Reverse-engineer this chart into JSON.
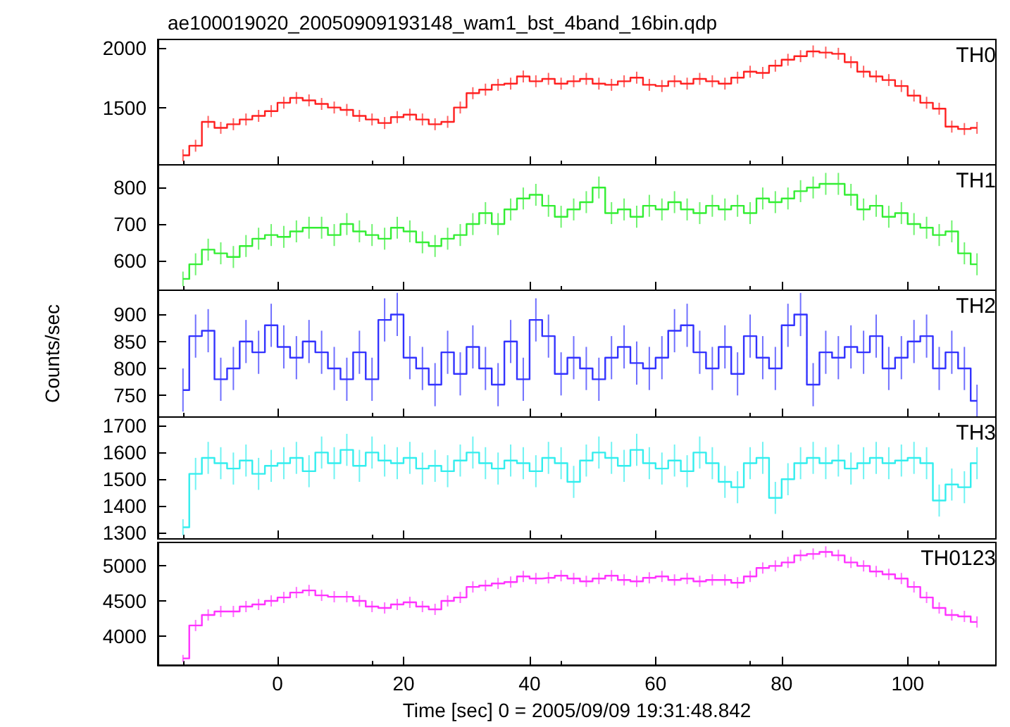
{
  "chart_data": [
    {
      "type": "step",
      "title": "ae100019020_20050909193148_wam1_bst_4band_16bin.qdp",
      "annotations": [
        "TH0"
      ],
      "color": "#ff2020",
      "tick_labels": "y",
      "marker": "none",
      "x": [
        -15,
        -13,
        -11,
        -9,
        -7,
        -5,
        -3,
        -1,
        1,
        3,
        5,
        7,
        9,
        11,
        13,
        15,
        17,
        19,
        21,
        23,
        25,
        27,
        29,
        31,
        33,
        35,
        37,
        39,
        41,
        43,
        45,
        47,
        49,
        51,
        53,
        55,
        57,
        59,
        61,
        63,
        65,
        67,
        69,
        71,
        73,
        75,
        77,
        79,
        81,
        83,
        85,
        87,
        89,
        91,
        93,
        95,
        97,
        99,
        101,
        103,
        105,
        107,
        109,
        111
      ],
      "values": [
        1100,
        1180,
        1380,
        1330,
        1360,
        1400,
        1430,
        1470,
        1540,
        1580,
        1560,
        1530,
        1500,
        1480,
        1430,
        1400,
        1370,
        1420,
        1440,
        1400,
        1360,
        1380,
        1500,
        1620,
        1650,
        1690,
        1700,
        1760,
        1720,
        1740,
        1700,
        1720,
        1740,
        1700,
        1690,
        1720,
        1750,
        1690,
        1680,
        1720,
        1700,
        1740,
        1720,
        1700,
        1750,
        1800,
        1790,
        1850,
        1900,
        1930,
        1970,
        1960,
        1950,
        1880,
        1800,
        1760,
        1730,
        1680,
        1600,
        1540,
        1490,
        1340,
        1320,
        1330
      ],
      "errors": [
        50,
        50,
        50,
        50,
        50,
        50,
        50,
        50,
        50,
        50,
        50,
        50,
        50,
        50,
        50,
        50,
        50,
        50,
        50,
        50,
        50,
        50,
        50,
        50,
        50,
        50,
        50,
        50,
        50,
        50,
        50,
        50,
        50,
        50,
        50,
        50,
        50,
        50,
        50,
        50,
        50,
        50,
        50,
        50,
        50,
        50,
        50,
        50,
        50,
        50,
        50,
        50,
        50,
        50,
        50,
        50,
        50,
        50,
        50,
        50,
        50,
        50,
        50,
        50
      ],
      "xlim": [
        -19,
        114
      ],
      "xticks": [
        0,
        20,
        40,
        60,
        80,
        100
      ],
      "ylim": [
        1020,
        2070
      ],
      "yticks": [
        1500,
        2000
      ]
    },
    {
      "type": "step",
      "annotations": [
        "TH1"
      ],
      "color": "#33ee33",
      "tick_labels": "y",
      "marker": "none",
      "x": [
        -15,
        -13,
        -11,
        -9,
        -7,
        -5,
        -3,
        -1,
        1,
        3,
        5,
        7,
        9,
        11,
        13,
        15,
        17,
        19,
        21,
        23,
        25,
        27,
        29,
        31,
        33,
        35,
        37,
        39,
        41,
        43,
        45,
        47,
        49,
        51,
        53,
        55,
        57,
        59,
        61,
        63,
        65,
        67,
        69,
        71,
        73,
        75,
        77,
        79,
        81,
        83,
        85,
        87,
        89,
        91,
        93,
        95,
        97,
        99,
        101,
        103,
        105,
        107,
        109,
        111
      ],
      "values": [
        550,
        590,
        630,
        620,
        610,
        640,
        660,
        670,
        665,
        680,
        690,
        690,
        670,
        700,
        680,
        670,
        660,
        690,
        680,
        650,
        640,
        660,
        670,
        700,
        730,
        700,
        740,
        770,
        780,
        750,
        720,
        740,
        760,
        800,
        730,
        740,
        720,
        750,
        740,
        760,
        740,
        730,
        750,
        740,
        750,
        730,
        770,
        760,
        770,
        790,
        800,
        810,
        810,
        780,
        740,
        750,
        720,
        730,
        700,
        690,
        670,
        680,
        620,
        590
      ],
      "errors": [
        20,
        30,
        30,
        30,
        30,
        30,
        30,
        30,
        30,
        30,
        30,
        30,
        30,
        30,
        30,
        30,
        30,
        30,
        30,
        30,
        30,
        30,
        30,
        30,
        30,
        30,
        30,
        30,
        30,
        30,
        30,
        30,
        30,
        30,
        30,
        30,
        30,
        30,
        30,
        30,
        30,
        30,
        30,
        30,
        30,
        30,
        30,
        30,
        30,
        30,
        30,
        30,
        30,
        30,
        30,
        30,
        30,
        30,
        30,
        30,
        30,
        30,
        30,
        30
      ],
      "xlim": [
        -19,
        114
      ],
      "xticks": [
        0,
        20,
        40,
        60,
        80,
        100
      ],
      "ylim": [
        519,
        862
      ],
      "yticks": [
        600,
        700,
        800
      ]
    },
    {
      "type": "step",
      "ylabel": "Counts/sec",
      "annotations": [
        "TH2"
      ],
      "color": "#3333ff",
      "tick_labels": "y",
      "marker": "none",
      "x": [
        -15,
        -13,
        -11,
        -9,
        -7,
        -5,
        -3,
        -1,
        1,
        3,
        5,
        7,
        9,
        11,
        13,
        15,
        17,
        19,
        21,
        23,
        25,
        27,
        29,
        31,
        33,
        35,
        37,
        39,
        41,
        43,
        45,
        47,
        49,
        51,
        53,
        55,
        57,
        59,
        61,
        63,
        65,
        67,
        69,
        71,
        73,
        75,
        77,
        79,
        81,
        83,
        85,
        87,
        89,
        91,
        93,
        95,
        97,
        99,
        101,
        103,
        105,
        107,
        109,
        111
      ],
      "values": [
        760,
        860,
        870,
        780,
        800,
        850,
        830,
        880,
        840,
        820,
        850,
        830,
        800,
        780,
        830,
        780,
        890,
        900,
        820,
        800,
        770,
        830,
        790,
        840,
        800,
        770,
        850,
        780,
        890,
        860,
        790,
        820,
        800,
        780,
        820,
        840,
        810,
        800,
        820,
        870,
        880,
        830,
        800,
        840,
        790,
        860,
        820,
        800,
        880,
        900,
        770,
        830,
        820,
        840,
        830,
        860,
        800,
        820,
        850,
        860,
        800,
        830,
        800,
        740
      ],
      "errors": [
        40,
        40,
        40,
        40,
        40,
        40,
        40,
        40,
        40,
        40,
        40,
        40,
        40,
        40,
        40,
        40,
        40,
        40,
        40,
        40,
        40,
        40,
        40,
        40,
        40,
        40,
        40,
        40,
        40,
        40,
        40,
        40,
        40,
        40,
        40,
        40,
        40,
        40,
        40,
        40,
        40,
        40,
        40,
        40,
        40,
        40,
        40,
        40,
        40,
        40,
        40,
        40,
        40,
        40,
        40,
        40,
        40,
        40,
        40,
        40,
        40,
        40,
        40,
        30
      ],
      "xlim": [
        -19,
        114
      ],
      "xticks": [
        0,
        20,
        40,
        60,
        80,
        100
      ],
      "ylim": [
        710,
        945
      ],
      "yticks": [
        750,
        800,
        850,
        900
      ]
    },
    {
      "type": "step",
      "annotations": [
        "TH3"
      ],
      "color": "#33eeee",
      "tick_labels": "y",
      "marker": "none",
      "x": [
        -15,
        -13,
        -11,
        -9,
        -7,
        -5,
        -3,
        -1,
        1,
        3,
        5,
        7,
        9,
        11,
        13,
        15,
        17,
        19,
        21,
        23,
        25,
        27,
        29,
        31,
        33,
        35,
        37,
        39,
        41,
        43,
        45,
        47,
        49,
        51,
        53,
        55,
        57,
        59,
        61,
        63,
        65,
        67,
        69,
        71,
        73,
        75,
        77,
        79,
        81,
        83,
        85,
        87,
        89,
        91,
        93,
        95,
        97,
        99,
        101,
        103,
        105,
        107,
        109,
        111
      ],
      "values": [
        1320,
        1520,
        1580,
        1560,
        1540,
        1570,
        1520,
        1550,
        1560,
        1580,
        1530,
        1600,
        1560,
        1610,
        1550,
        1600,
        1570,
        1560,
        1580,
        1540,
        1550,
        1530,
        1570,
        1600,
        1560,
        1540,
        1570,
        1560,
        1530,
        1580,
        1560,
        1490,
        1570,
        1600,
        1580,
        1550,
        1610,
        1560,
        1540,
        1570,
        1530,
        1600,
        1560,
        1490,
        1470,
        1560,
        1580,
        1430,
        1500,
        1560,
        1580,
        1560,
        1570,
        1540,
        1560,
        1580,
        1560,
        1570,
        1580,
        1560,
        1420,
        1480,
        1470,
        1560
      ],
      "errors": [
        30,
        60,
        60,
        60,
        60,
        60,
        60,
        60,
        60,
        60,
        60,
        60,
        60,
        60,
        60,
        60,
        60,
        60,
        60,
        60,
        60,
        60,
        60,
        60,
        60,
        60,
        60,
        60,
        60,
        60,
        60,
        60,
        60,
        60,
        60,
        60,
        60,
        60,
        60,
        60,
        60,
        60,
        60,
        60,
        60,
        60,
        60,
        60,
        60,
        60,
        60,
        60,
        60,
        60,
        60,
        60,
        60,
        60,
        60,
        60,
        60,
        60,
        60,
        60
      ],
      "xlim": [
        -19,
        114
      ],
      "xticks": [
        0,
        20,
        40,
        60,
        80,
        100
      ],
      "ylim": [
        1276,
        1733
      ],
      "yticks": [
        1300,
        1400,
        1500,
        1600,
        1700
      ]
    },
    {
      "type": "step",
      "xlabel": "Time [sec] 0 = 2005/09/09 19:31:48.842",
      "annotations": [
        "TH0123"
      ],
      "color": "#ff33ff",
      "marker": "none",
      "x": [
        -15,
        -13,
        -11,
        -9,
        -7,
        -5,
        -3,
        -1,
        1,
        3,
        5,
        7,
        9,
        11,
        13,
        15,
        17,
        19,
        21,
        23,
        25,
        27,
        29,
        31,
        33,
        35,
        37,
        39,
        41,
        43,
        45,
        47,
        49,
        51,
        53,
        55,
        57,
        59,
        61,
        63,
        65,
        67,
        69,
        71,
        73,
        75,
        77,
        79,
        81,
        83,
        85,
        87,
        89,
        91,
        93,
        95,
        97,
        99,
        101,
        103,
        105,
        107,
        109,
        111
      ],
      "values": [
        3680,
        4150,
        4300,
        4350,
        4350,
        4420,
        4450,
        4500,
        4550,
        4620,
        4650,
        4580,
        4560,
        4560,
        4500,
        4420,
        4400,
        4450,
        4480,
        4420,
        4380,
        4500,
        4550,
        4700,
        4720,
        4750,
        4770,
        4850,
        4820,
        4830,
        4860,
        4820,
        4780,
        4820,
        4860,
        4800,
        4780,
        4830,
        4850,
        4800,
        4820,
        4780,
        4800,
        4800,
        4760,
        4850,
        4970,
        5000,
        5050,
        5150,
        5170,
        5200,
        5150,
        5050,
        5000,
        4920,
        4880,
        4820,
        4700,
        4550,
        4400,
        4300,
        4280,
        4200
      ],
      "errors": [
        50,
        80,
        80,
        80,
        80,
        80,
        80,
        80,
        80,
        80,
        80,
        80,
        80,
        80,
        80,
        80,
        80,
        80,
        80,
        80,
        80,
        80,
        80,
        80,
        80,
        80,
        80,
        80,
        80,
        80,
        80,
        80,
        80,
        80,
        80,
        80,
        80,
        80,
        80,
        80,
        80,
        80,
        80,
        80,
        80,
        80,
        80,
        80,
        80,
        80,
        80,
        80,
        80,
        80,
        80,
        80,
        80,
        80,
        80,
        80,
        80,
        80,
        80,
        80
      ],
      "xlim": [
        -19,
        114
      ],
      "xticks": [
        0,
        20,
        40,
        60,
        80,
        100
      ],
      "ylim": [
        3584,
        5335
      ],
      "yticks": [
        4000,
        4500,
        5000
      ]
    }
  ]
}
